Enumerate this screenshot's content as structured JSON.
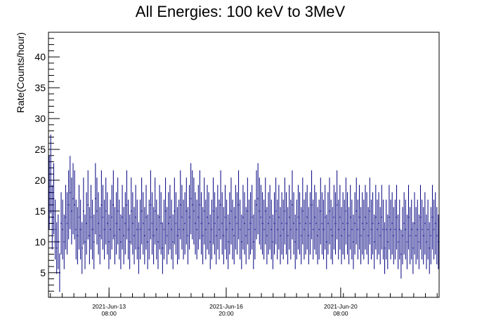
{
  "chart_data": {
    "type": "scatter",
    "title": "All Energies:  100 keV to 3MeV",
    "xlabel": "",
    "ylabel": "Rate(Counts/hour)",
    "ylim": [
      1,
      44
    ],
    "yticks": [
      5,
      10,
      15,
      20,
      25,
      30,
      35,
      40
    ],
    "x_ticks": [
      {
        "pos": 0.155,
        "line1": "2021-Jun-13",
        "line2": "08:00"
      },
      {
        "pos": 0.455,
        "line1": "2021-Jun-16",
        "line2": "20:00"
      },
      {
        "pos": 0.748,
        "line1": "2021-Jun-20",
        "line2": "08:00"
      }
    ],
    "grid": false,
    "legend": "none",
    "error_bars": true,
    "series_color": "#000080",
    "series": [
      {
        "values": [
          18,
          21,
          14,
          17,
          12,
          9,
          10,
          5,
          13,
          12,
          10,
          14,
          13,
          16,
          18,
          15,
          17,
          16,
          12,
          11,
          14,
          12,
          9,
          15,
          10,
          13,
          16,
          11,
          14,
          12,
          10,
          17,
          15,
          13,
          11,
          16,
          14,
          12,
          15,
          13,
          10,
          12,
          14,
          16,
          11,
          13,
          15,
          12,
          10,
          14,
          11,
          13,
          16,
          12,
          10,
          15,
          13,
          11,
          14,
          12,
          9,
          12,
          15,
          13,
          11,
          14,
          10,
          12,
          16,
          13,
          11,
          15,
          12,
          10,
          14,
          13,
          9,
          12,
          15,
          11,
          13,
          14,
          12,
          10,
          15,
          13,
          11,
          12,
          16,
          14,
          12,
          13,
          15,
          11,
          14,
          17,
          16,
          15,
          13,
          12,
          14,
          16,
          13,
          11,
          15,
          12,
          14,
          13,
          10,
          12,
          15,
          13,
          11,
          14,
          12,
          16,
          13,
          11,
          14,
          12,
          10,
          13,
          15,
          12,
          11,
          14,
          13,
          16,
          12,
          10,
          14,
          13,
          11,
          15,
          12,
          13,
          14,
          10,
          12,
          16,
          17,
          15,
          14,
          13,
          12,
          15,
          11,
          13,
          14,
          12,
          10,
          13,
          15,
          12,
          14,
          11,
          13,
          12,
          15,
          13,
          11,
          14,
          12,
          16,
          13,
          10,
          12,
          14,
          13,
          11,
          15,
          12,
          13,
          14,
          11,
          13,
          16,
          12,
          14,
          13,
          11,
          12,
          15,
          13,
          12,
          14,
          10,
          13,
          15,
          12,
          11,
          14,
          13,
          16,
          12,
          14,
          11,
          13,
          12,
          15,
          13,
          11,
          14,
          12,
          10,
          13,
          15,
          12,
          14,
          11,
          13,
          12,
          14,
          13,
          11,
          15,
          12,
          13,
          10,
          14,
          12,
          13,
          11,
          14,
          12,
          9,
          12,
          10,
          14,
          12,
          13,
          11,
          12,
          14,
          10,
          12,
          8,
          11,
          13,
          12,
          10,
          14,
          11,
          12,
          9,
          13,
          11,
          12,
          10,
          14,
          12,
          11,
          13,
          10,
          12,
          9,
          11,
          14,
          12,
          13,
          11,
          10
        ]
      }
    ]
  }
}
